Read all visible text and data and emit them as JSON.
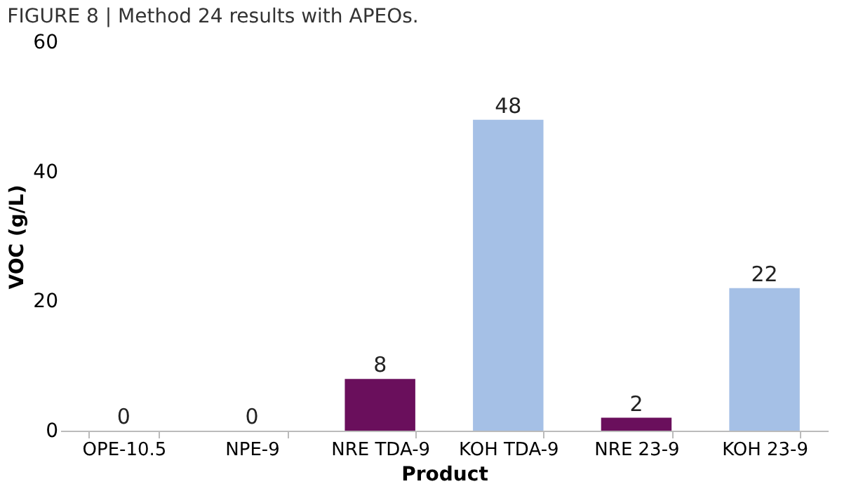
{
  "chart_data": {
    "type": "bar",
    "title": "FIGURE 8 | Method 24 results with APEOs.",
    "xlabel": "Product",
    "ylabel": "VOC (g/L)",
    "categories": [
      "OPE-10.5",
      "NPE-9",
      "NRE TDA-9",
      "KOH TDA-9",
      "NRE 23-9",
      "KOH 23-9"
    ],
    "values": [
      0,
      0,
      8,
      48,
      2,
      22
    ],
    "colors": [
      "#6a0f5c",
      "#a5c0e6",
      "#6a0f5c",
      "#a5c0e6",
      "#6a0f5c",
      "#a5c0e6"
    ],
    "ylim": [
      0,
      60
    ],
    "yticks": [
      0,
      20,
      40,
      60
    ],
    "grid": false,
    "data_labels": true
  }
}
